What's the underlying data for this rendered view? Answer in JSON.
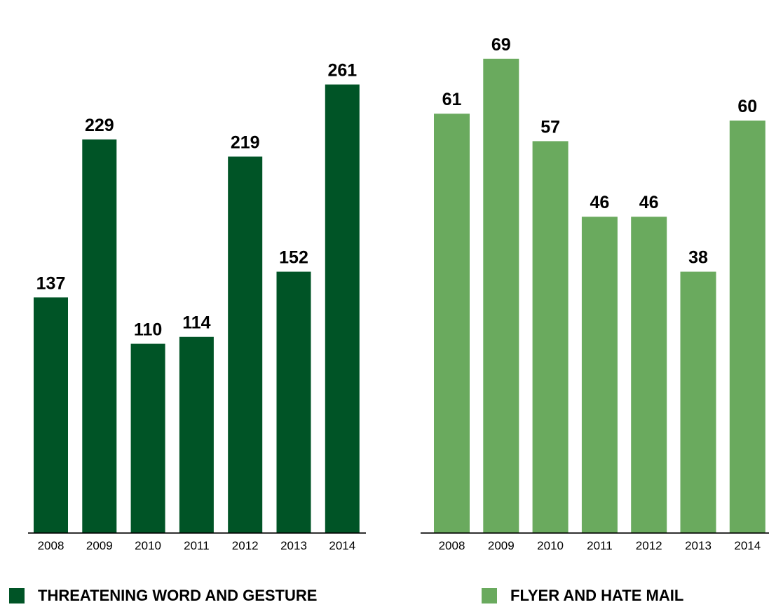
{
  "chart_data": [
    {
      "type": "bar",
      "categories": [
        "2008",
        "2009",
        "2010",
        "2011",
        "2012",
        "2013",
        "2014"
      ],
      "values": [
        137,
        229,
        110,
        114,
        219,
        152,
        261
      ],
      "ylim": [
        0,
        300
      ],
      "color": "#005426",
      "legend": "THREATENING WORD AND GESTURE",
      "legend_position": "bottom-left",
      "grid": false
    },
    {
      "type": "bar",
      "categories": [
        "2008",
        "2009",
        "2010",
        "2011",
        "2012",
        "2013",
        "2014"
      ],
      "values": [
        61,
        69,
        57,
        46,
        46,
        38,
        60
      ],
      "ylim": [
        0,
        75
      ],
      "color": "#6aaa5e",
      "legend": "FLYER AND HATE MAIL",
      "legend_position": "bottom-right",
      "grid": false
    }
  ]
}
